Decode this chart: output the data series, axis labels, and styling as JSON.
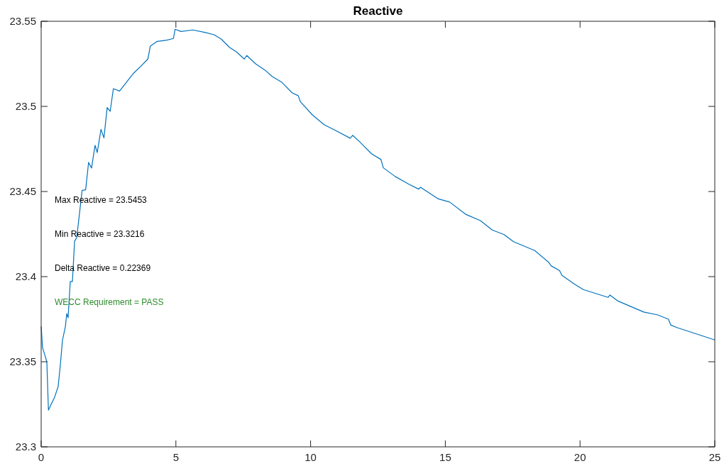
{
  "chart_data": {
    "type": "line",
    "title": "Reactive",
    "x": [
      0,
      0.05,
      0.13,
      0.21,
      0.27,
      0.37,
      0.5,
      0.63,
      0.71,
      0.79,
      0.9,
      0.95,
      1.0,
      1.08,
      1.16,
      1.24,
      1.32,
      1.52,
      1.65,
      1.76,
      1.87,
      2.0,
      2.08,
      2.22,
      2.33,
      2.45,
      2.56,
      2.68,
      2.91,
      3.43,
      3.7,
      3.96,
      4.05,
      4.31,
      4.66,
      4.91,
      4.97,
      5.19,
      5.63,
      6.07,
      6.42,
      6.68,
      6.99,
      7.25,
      7.54,
      7.63,
      7.96,
      8.31,
      8.57,
      8.92,
      9.32,
      9.54,
      9.62,
      10.06,
      10.5,
      10.94,
      11.47,
      11.56,
      11.82,
      12.26,
      12.61,
      12.7,
      13.14,
      13.66,
      14.01,
      14.08,
      14.72,
      15.16,
      15.77,
      16.3,
      16.74,
      17.18,
      17.53,
      18.32,
      18.84,
      18.93,
      19.24,
      19.33,
      19.77,
      20.12,
      21.04,
      21.11,
      21.39,
      22.36,
      22.88,
      23.28,
      23.37,
      23.63,
      25
    ],
    "series": [
      {
        "color": "#0072bd",
        "values": [
          23.3708,
          23.3583,
          23.3542,
          23.35,
          23.3216,
          23.325,
          23.3292,
          23.3354,
          23.3479,
          23.3625,
          23.3708,
          23.3783,
          23.3758,
          23.3971,
          23.3971,
          23.4208,
          23.4229,
          23.4507,
          23.451,
          23.4671,
          23.4638,
          23.4771,
          23.4729,
          23.4865,
          23.4815,
          23.4993,
          23.4971,
          23.5104,
          23.509,
          23.5195,
          23.5236,
          23.5278,
          23.5354,
          23.5382,
          23.5389,
          23.5399,
          23.5453,
          23.544,
          23.5449,
          23.5435,
          23.5421,
          23.5396,
          23.5347,
          23.532,
          23.5278,
          23.5299,
          23.525,
          23.5213,
          23.5176,
          23.5143,
          23.5079,
          23.5063,
          23.5028,
          23.4951,
          23.4893,
          23.4857,
          23.4813,
          23.483,
          23.4792,
          23.4722,
          23.4688,
          23.4639,
          23.4588,
          23.4542,
          23.4514,
          23.4525,
          23.4458,
          23.4438,
          23.4365,
          23.4329,
          23.4274,
          23.4247,
          23.4205,
          23.4153,
          23.4083,
          23.4063,
          23.4035,
          23.4007,
          23.3958,
          23.3924,
          23.3878,
          23.3892,
          23.3858,
          23.3792,
          23.3775,
          23.375,
          23.3715,
          23.3699,
          23.3628
        ]
      }
    ],
    "xlim": [
      0,
      25
    ],
    "xticks": [
      0,
      5,
      10,
      15,
      20,
      25
    ],
    "ylim": [
      23.3,
      23.55
    ],
    "yticks": [
      23.3,
      23.35,
      23.4,
      23.45,
      23.5,
      23.55
    ],
    "grid": false,
    "annotations": [
      "Max Reactive = 23.5453",
      "Min Reactive = 23.3216",
      "Delta Reactive = 0.22369",
      "WECC Requirement = PASS"
    ]
  }
}
